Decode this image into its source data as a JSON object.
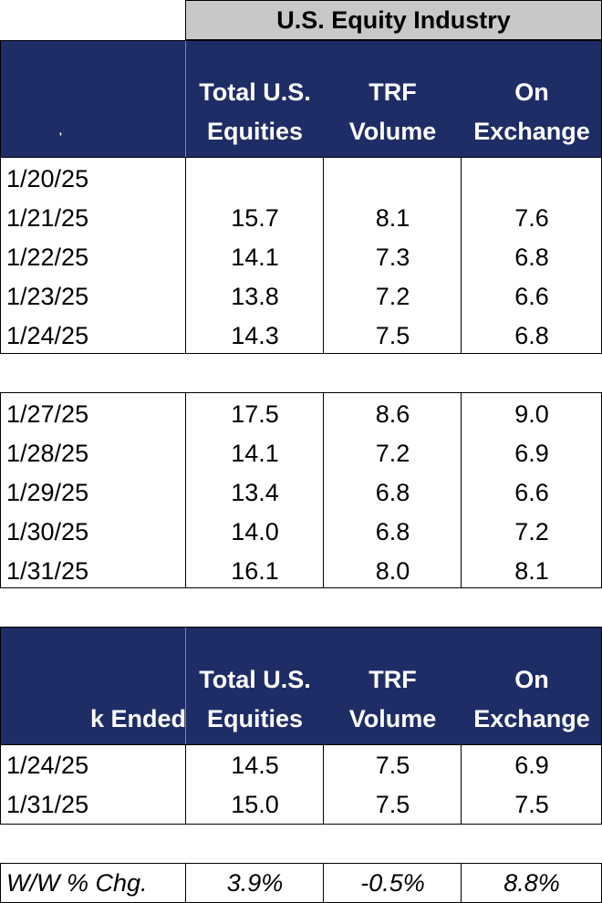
{
  "title": "U.S. Equity Industry",
  "header1": {
    "first": "",
    "marker": "'",
    "cols": [
      {
        "line1": "Total U.S.",
        "line2": "Equities"
      },
      {
        "line1": "TRF",
        "line2": "Volume"
      },
      {
        "line1": "On",
        "line2": "Exchange"
      }
    ]
  },
  "week1": [
    {
      "date": "1/20/25",
      "total": "",
      "trf": "",
      "on_exchange": ""
    },
    {
      "date": "1/21/25",
      "total": "15.7",
      "trf": "8.1",
      "on_exchange": "7.6"
    },
    {
      "date": "1/22/25",
      "total": "14.1",
      "trf": "7.3",
      "on_exchange": "6.8"
    },
    {
      "date": "1/23/25",
      "total": "13.8",
      "trf": "7.2",
      "on_exchange": "6.6"
    },
    {
      "date": "1/24/25",
      "total": "14.3",
      "trf": "7.5",
      "on_exchange": "6.8"
    }
  ],
  "week2": [
    {
      "date": "1/27/25",
      "total": "17.5",
      "trf": "8.6",
      "on_exchange": "9.0"
    },
    {
      "date": "1/28/25",
      "total": "14.1",
      "trf": "7.2",
      "on_exchange": "6.9"
    },
    {
      "date": "1/29/25",
      "total": "13.4",
      "trf": "6.8",
      "on_exchange": "6.6"
    },
    {
      "date": "1/30/25",
      "total": "14.0",
      "trf": "6.8",
      "on_exchange": "7.2"
    },
    {
      "date": "1/31/25",
      "total": "16.1",
      "trf": "8.0",
      "on_exchange": "8.1"
    }
  ],
  "header2": {
    "first": "k Ended",
    "cols": [
      {
        "line1": "Total U.S.",
        "line2": "Equities"
      },
      {
        "line1": "TRF",
        "line2": "Volume"
      },
      {
        "line1": "On",
        "line2": "Exchange"
      }
    ]
  },
  "weekly": [
    {
      "date": "1/24/25",
      "total": "14.5",
      "trf": "7.5",
      "on_exchange": "6.9"
    },
    {
      "date": "1/31/25",
      "total": "15.0",
      "trf": "7.5",
      "on_exchange": "7.5"
    }
  ],
  "change": {
    "label": "W/W % Chg.",
    "total": "3.9%",
    "trf": "-0.5%",
    "on_exchange": "8.8%"
  }
}
